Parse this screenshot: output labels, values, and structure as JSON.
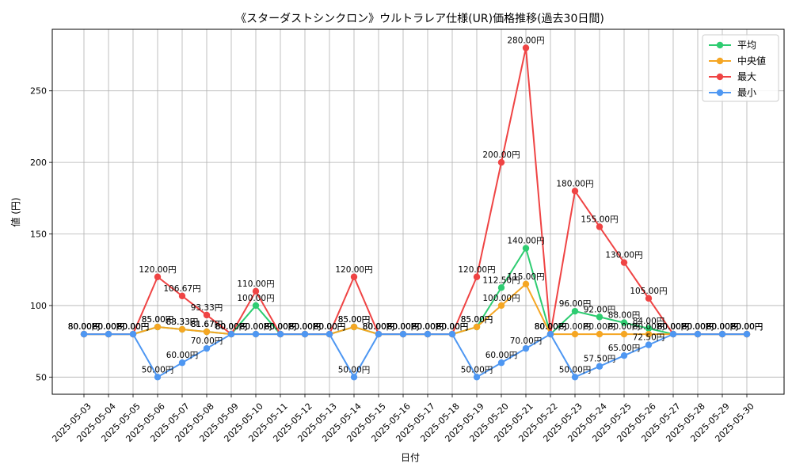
{
  "chart_data": {
    "type": "line",
    "title": "《スターダストシンクロン》ウルトラレア仕様(UR)価格推移(過去30日間)",
    "xlabel": "日付",
    "ylabel": "値 (円)",
    "categories": [
      "2025-05-03",
      "2025-05-04",
      "2025-05-05",
      "2025-05-06",
      "2025-05-07",
      "2025-05-08",
      "2025-05-09",
      "2025-05-10",
      "2025-05-11",
      "2025-05-12",
      "2025-05-13",
      "2025-05-14",
      "2025-05-15",
      "2025-05-16",
      "2025-05-17",
      "2025-05-18",
      "2025-05-19",
      "2025-05-20",
      "2025-05-21",
      "2025-05-22",
      "2025-05-23",
      "2025-05-24",
      "2025-05-25",
      "2025-05-26",
      "2025-05-27",
      "2025-05-28",
      "2025-05-29",
      "2025-05-30"
    ],
    "yticks": [
      50,
      100,
      150,
      200,
      250
    ],
    "ylim": [
      38,
      293
    ],
    "grid": true,
    "legend_position": "top-right",
    "value_suffix": "円",
    "series": [
      {
        "name": "平均",
        "color": "#2ecc71",
        "values": [
          80,
          80,
          80,
          85,
          83.33,
          81.67,
          80,
          100,
          80,
          80,
          80,
          85,
          80,
          80,
          80,
          80,
          85,
          112.5,
          140,
          80,
          96,
          92,
          88,
          84,
          80,
          80,
          80,
          80
        ]
      },
      {
        "name": "中央値",
        "color": "#f5a623",
        "values": [
          80,
          80,
          80,
          85,
          83.33,
          81.67,
          80,
          80,
          80,
          80,
          80,
          85,
          80,
          80,
          80,
          80,
          85,
          100,
          115,
          80,
          80,
          80,
          80,
          80,
          80,
          80,
          80,
          80
        ]
      },
      {
        "name": "最大",
        "color": "#ef4444",
        "values": [
          80,
          80,
          80,
          120,
          106.67,
          93.33,
          80,
          110,
          80,
          80,
          80,
          120,
          80,
          80,
          80,
          80,
          120,
          200,
          280,
          80,
          180,
          155,
          130,
          105,
          80,
          80,
          80,
          80
        ]
      },
      {
        "name": "最小",
        "color": "#4e97f2",
        "values": [
          80,
          80,
          80,
          50,
          60,
          70,
          80,
          80,
          80,
          80,
          80,
          50,
          80,
          80,
          80,
          80,
          50,
          60,
          70,
          80,
          50,
          57.5,
          65,
          72.5,
          80,
          80,
          80,
          80
        ]
      }
    ]
  }
}
